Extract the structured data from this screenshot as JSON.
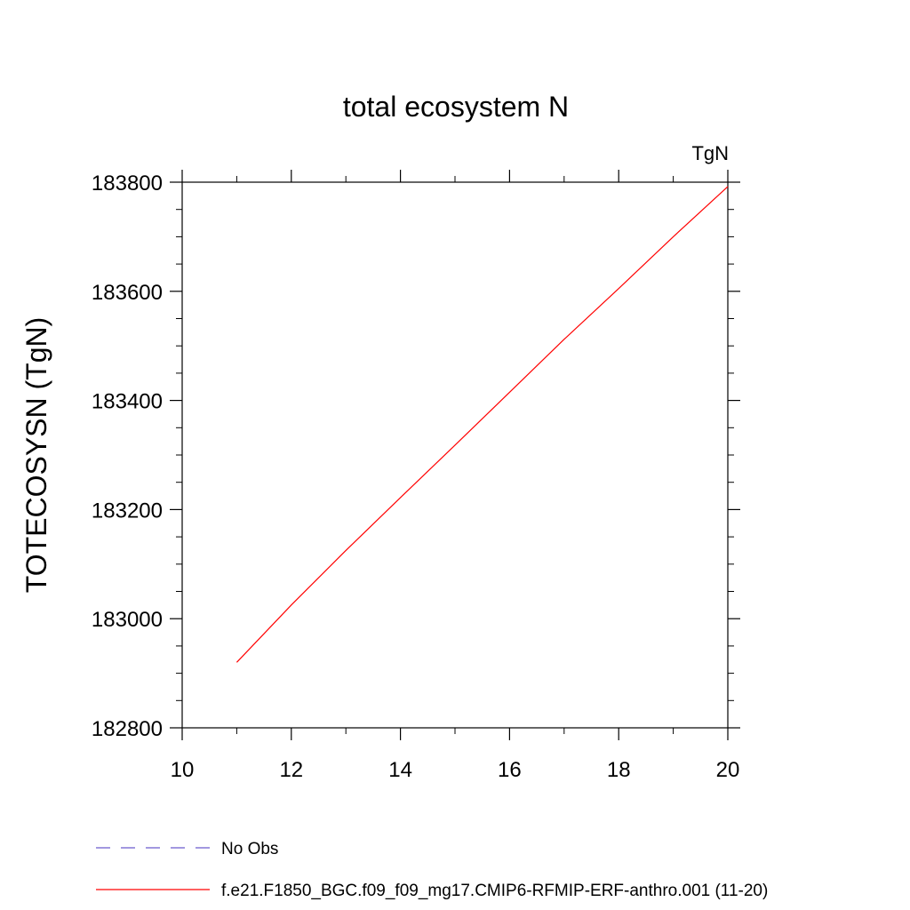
{
  "chart_data": {
    "type": "line",
    "title": "total ecosystem N",
    "units_label": "TgN",
    "ylabel": "TOTECOSYSN  (TgN)",
    "xlabel": "",
    "xlim": [
      10,
      20
    ],
    "ylim": [
      182800,
      183800
    ],
    "xticks": [
      10,
      12,
      14,
      16,
      18,
      20
    ],
    "yticks": [
      182800,
      183000,
      183200,
      183400,
      183600,
      183800
    ],
    "xtick_labels": [
      "10",
      "12",
      "14",
      "16",
      "18",
      "20"
    ],
    "ytick_labels": [
      "182800",
      "183000",
      "183200",
      "183400",
      "183600",
      "183800"
    ],
    "grid": false,
    "legend_position": "bottom",
    "series": [
      {
        "name": "No Obs",
        "color": "#6a5acd",
        "dash": "dashed",
        "x": [],
        "y": []
      },
      {
        "name": "f.e21.F1850_BGC.f09_f09_mg17.CMIP6-RFMIP-ERF-anthro.001 (11-20)",
        "color": "#ff0000",
        "dash": "solid",
        "x": [
          11,
          12,
          13,
          14,
          15,
          16,
          17,
          18,
          19,
          20
        ],
        "y": [
          182920,
          183025,
          183125,
          183222,
          183318,
          183415,
          183512,
          183605,
          183700,
          183792
        ]
      }
    ]
  }
}
